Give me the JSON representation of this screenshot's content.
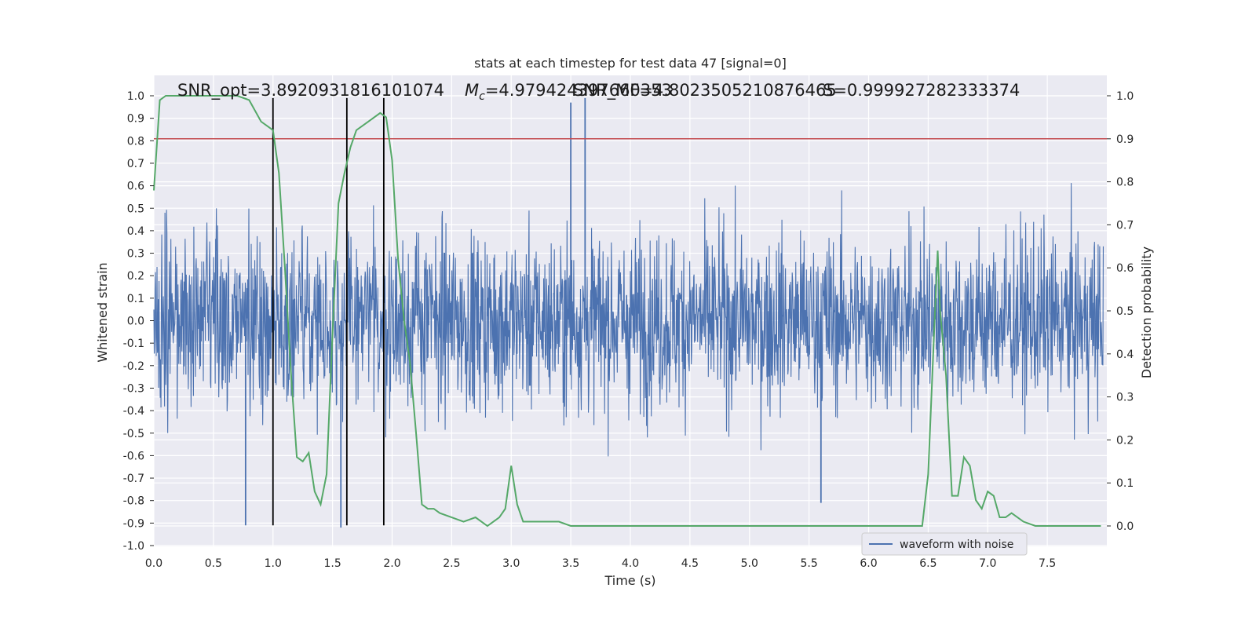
{
  "chart_data": {
    "type": "line",
    "title": "stats at each timestep for test data 47 [signal=0]",
    "xlabel": "Time (s)",
    "ylabel": "Whitened strain",
    "ylabel_right": "Detection probability",
    "xlim": [
      0.0,
      8.0
    ],
    "ylim": [
      -1.0,
      1.0
    ],
    "ylim_right": [
      -0.05,
      1.03
    ],
    "x_ticks": [
      "0.0",
      "0.5",
      "1.0",
      "1.5",
      "2.0",
      "2.5",
      "3.0",
      "3.5",
      "4.0",
      "4.5",
      "5.0",
      "5.5",
      "6.0",
      "6.5",
      "7.0",
      "7.5"
    ],
    "y_ticks": [
      "-1.0",
      "-0.9",
      "-0.8",
      "-0.7",
      "-0.6",
      "-0.5",
      "-0.4",
      "-0.3",
      "-0.2",
      "-0.1",
      "0.0",
      "0.1",
      "0.2",
      "0.3",
      "0.4",
      "0.5",
      "0.6",
      "0.7",
      "0.8",
      "0.9",
      "1.0"
    ],
    "y_ticks_right": [
      "0.0",
      "0.1",
      "0.2",
      "0.3",
      "0.4",
      "0.5",
      "0.6",
      "0.7",
      "0.8",
      "0.9",
      "1.0"
    ],
    "grid": true,
    "legend_position": "lower-right",
    "annotations": [
      "SNR_opt=3.8920931816101074",
      "=4.979424397660353",
      "SNR_MF=4.8023505210876465",
      "S=0.999927282333374"
    ],
    "annotation_mc_symbol": "M",
    "annotation_mc_subscript": "c",
    "series": [
      {
        "name": "waveform with noise",
        "color": "#4c72b0",
        "kind": "noise_band",
        "typical_abs_amplitude": 0.35,
        "peak_spikes": [
          [
            3.5,
            0.97
          ],
          [
            3.62,
            0.99
          ],
          [
            1.57,
            -0.92
          ],
          [
            0.77,
            -0.91
          ],
          [
            5.6,
            -0.81
          ]
        ]
      },
      {
        "name": "",
        "color": "#55a868",
        "axis": "right",
        "x": [
          0.0,
          0.05,
          0.1,
          0.2,
          0.3,
          0.4,
          0.5,
          0.6,
          0.7,
          0.8,
          0.9,
          0.95,
          1.0,
          1.05,
          1.1,
          1.15,
          1.2,
          1.25,
          1.3,
          1.35,
          1.4,
          1.45,
          1.5,
          1.55,
          1.6,
          1.65,
          1.7,
          1.8,
          1.9,
          1.95,
          2.0,
          2.05,
          2.1,
          2.15,
          2.2,
          2.25,
          2.3,
          2.35,
          2.4,
          2.5,
          2.6,
          2.7,
          2.8,
          2.9,
          2.95,
          3.0,
          3.05,
          3.1,
          3.15,
          3.2,
          3.25,
          3.3,
          3.35,
          3.4,
          3.5,
          3.6,
          3.7,
          3.8,
          3.9,
          4.0,
          4.2,
          4.4,
          4.6,
          4.8,
          5.0,
          5.2,
          5.4,
          5.6,
          5.8,
          6.0,
          6.2,
          6.3,
          6.4,
          6.45,
          6.5,
          6.55,
          6.58,
          6.6,
          6.65,
          6.7,
          6.75,
          6.8,
          6.85,
          6.9,
          6.95,
          7.0,
          7.05,
          7.1,
          7.15,
          7.2,
          7.25,
          7.3,
          7.4,
          7.5,
          7.6,
          7.7,
          7.8,
          7.95
        ],
        "values": [
          0.78,
          0.99,
          1.0,
          1.0,
          1.0,
          1.0,
          1.0,
          1.0,
          1.0,
          0.99,
          0.94,
          0.93,
          0.92,
          0.82,
          0.6,
          0.36,
          0.16,
          0.15,
          0.17,
          0.08,
          0.05,
          0.12,
          0.45,
          0.75,
          0.82,
          0.88,
          0.92,
          0.94,
          0.96,
          0.95,
          0.85,
          0.62,
          0.48,
          0.38,
          0.22,
          0.05,
          0.04,
          0.04,
          0.03,
          0.02,
          0.01,
          0.02,
          0.0,
          0.02,
          0.04,
          0.14,
          0.05,
          0.01,
          0.01,
          0.01,
          0.01,
          0.01,
          0.01,
          0.01,
          0.0,
          0.0,
          0.0,
          0.0,
          0.0,
          0.0,
          0.0,
          0.0,
          0.0,
          0.0,
          0.0,
          0.0,
          0.0,
          0.0,
          0.0,
          0.0,
          0.0,
          0.0,
          0.0,
          0.0,
          0.12,
          0.45,
          0.64,
          0.5,
          0.35,
          0.07,
          0.07,
          0.16,
          0.14,
          0.06,
          0.04,
          0.08,
          0.07,
          0.02,
          0.02,
          0.03,
          0.02,
          0.01,
          0.0,
          0.0,
          0.0,
          0.0,
          0.0,
          0.0
        ]
      }
    ],
    "threshold_line": {
      "value": 0.9,
      "axis": "right",
      "color": "#c44e52"
    },
    "vertical_lines": {
      "x": [
        1.0,
        1.62,
        1.93
      ],
      "y_range": [
        -0.91,
        0.99
      ],
      "color": "#000000"
    }
  }
}
